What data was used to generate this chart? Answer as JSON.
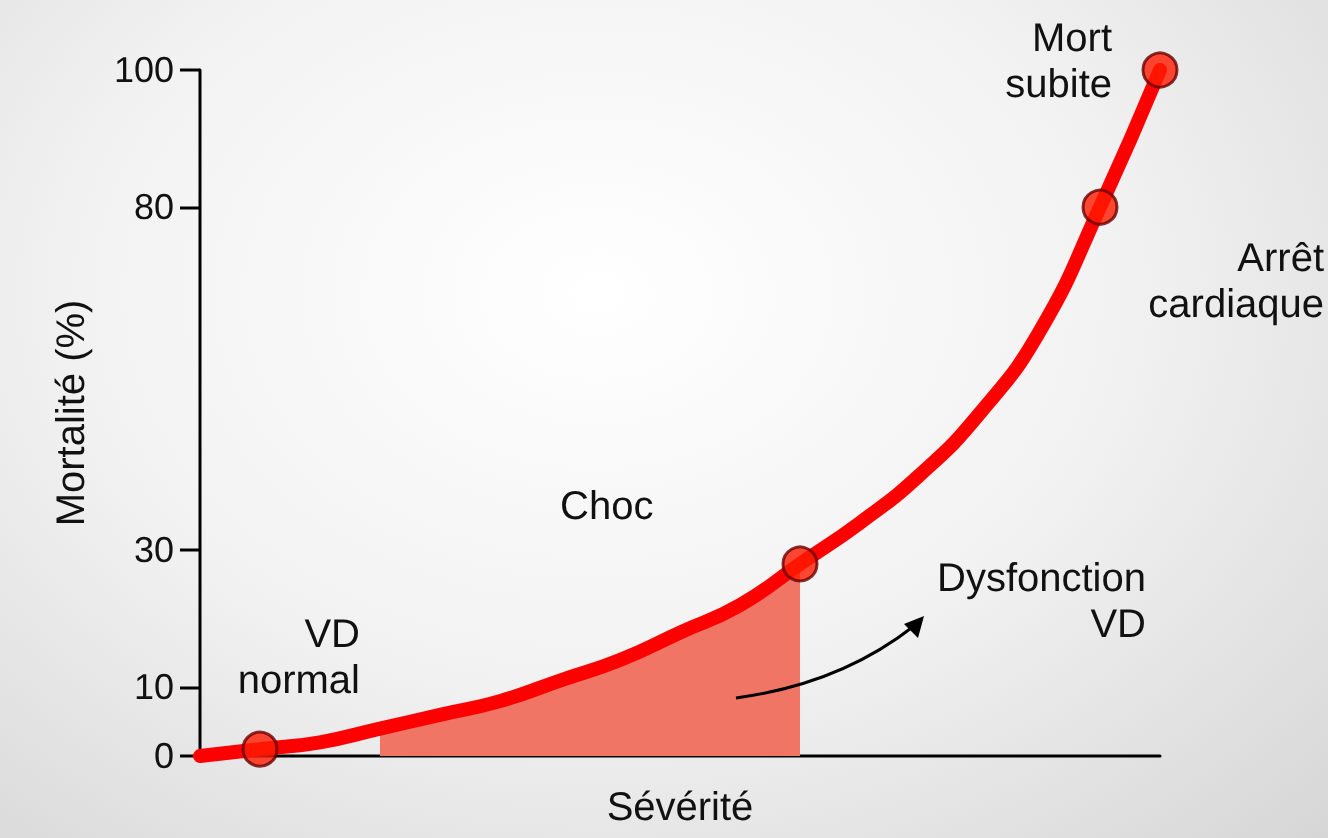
{
  "chart_data": {
    "type": "line",
    "xlabel": "Sévérité",
    "ylabel": "Mortalité (%)",
    "categories": [
      null,
      null,
      null,
      null,
      null,
      null,
      null,
      null,
      null,
      null,
      null,
      null,
      null,
      null,
      null,
      null,
      null
    ],
    "series": [
      {
        "type": "area",
        "color": "#f07565",
        "values": [
          null,
          null,
          null,
          4,
          6,
          8,
          11,
          14,
          18,
          22,
          28,
          null,
          null,
          null,
          null,
          null,
          null
        ]
      },
      {
        "color": "#ff0000",
        "marker": "none",
        "values": [
          0,
          1,
          2,
          4,
          6,
          8,
          11,
          14,
          18,
          22,
          28,
          34,
          41,
          50,
          62,
          80,
          100
        ]
      },
      {
        "type": "scatter",
        "color": "#ff1a00",
        "marker": "circle",
        "values": [
          null,
          1,
          null,
          null,
          null,
          null,
          null,
          null,
          null,
          null,
          28,
          null,
          null,
          null,
          null,
          80,
          100
        ]
      }
    ],
    "ylim": [
      0,
      100
    ],
    "yticks": [
      0,
      10,
      30,
      80,
      100
    ],
    "grid": false,
    "annotations": [
      "VD\nnormal",
      "Choc",
      "Dysfonction\nVD",
      "Arrêt\ncardiaque",
      "Mort\nsubite"
    ]
  }
}
